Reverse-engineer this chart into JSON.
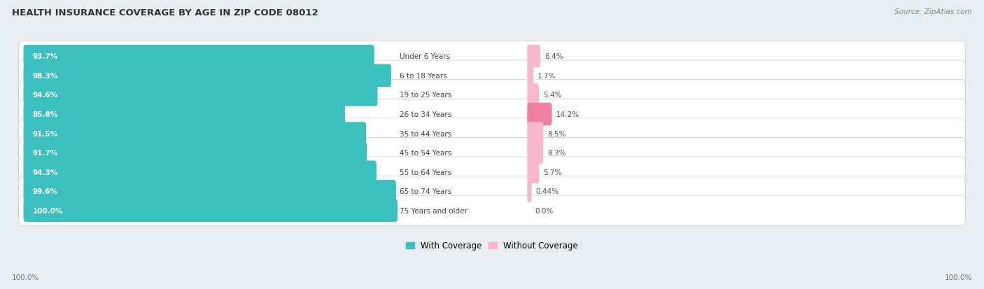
{
  "title": "HEALTH INSURANCE COVERAGE BY AGE IN ZIP CODE 08012",
  "source": "Source: ZipAtlas.com",
  "categories": [
    "Under 6 Years",
    "6 to 18 Years",
    "19 to 25 Years",
    "26 to 34 Years",
    "35 to 44 Years",
    "45 to 54 Years",
    "55 to 64 Years",
    "65 to 74 Years",
    "75 Years and older"
  ],
  "with_coverage": [
    93.7,
    98.3,
    94.6,
    85.8,
    91.5,
    91.7,
    94.3,
    99.6,
    100.0
  ],
  "without_coverage": [
    6.4,
    1.7,
    5.4,
    14.2,
    8.5,
    8.3,
    5.7,
    0.44,
    0.0
  ],
  "with_labels": [
    "93.7%",
    "98.3%",
    "94.6%",
    "85.8%",
    "91.5%",
    "91.7%",
    "94.3%",
    "99.6%",
    "100.0%"
  ],
  "without_labels": [
    "6.4%",
    "1.7%",
    "5.4%",
    "14.2%",
    "8.5%",
    "8.3%",
    "5.7%",
    "0.44%",
    "0.0%"
  ],
  "color_with": "#3BBFBF",
  "color_without": "#F080A0",
  "color_without_light": "#F8B8CC",
  "bg_color": "#E8EDF2",
  "bar_bg_color": "#FFFFFF",
  "title_fontsize": 9.5,
  "label_fontsize": 7.5,
  "tick_fontsize": 7.5,
  "legend_fontsize": 8.5,
  "source_fontsize": 7.5,
  "left_axis_label": "100.0%",
  "right_axis_label": "100.0%"
}
